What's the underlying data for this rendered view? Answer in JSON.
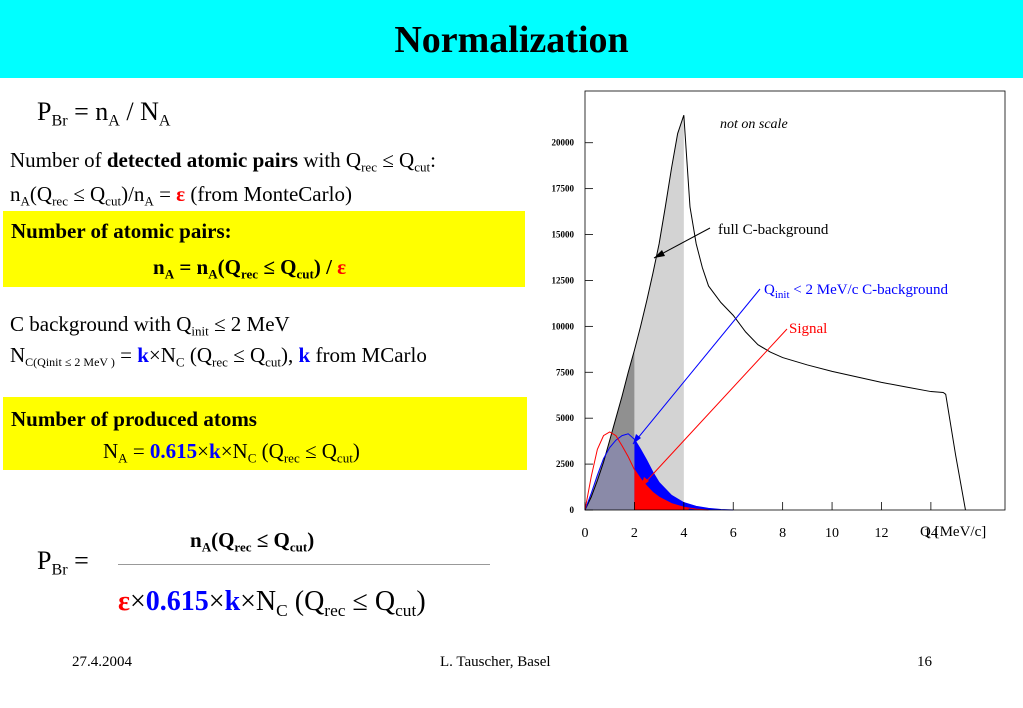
{
  "slide": {
    "title": "Normalization"
  },
  "formulas": {
    "pbr_def": {
      "p": "P",
      "p_sub": "Br",
      "eq": " = n",
      "a_sub": "A",
      "div": " / N",
      "a_sub2": "A"
    },
    "detected": {
      "pre": "Number of ",
      "bold": "detected atomic pairs",
      "post": " with Q",
      "rec": "rec",
      "le": " ≤ Q",
      "cut": "cut",
      "colon": ":"
    },
    "eff": {
      "n": "n",
      "a": "A",
      "q": "(Q",
      "rec": "rec",
      "le": " ≤ Q",
      "cut": "cut",
      "mid": ")/n",
      "a2": "A",
      "eq": " = ",
      "eps": "ε",
      "post": " (from MonteCarlo)"
    },
    "box1": {
      "title": "Number of atomic pairs:",
      "f1": "n",
      "a": "A",
      "f2": " = n",
      "a2": "A",
      "f3": "(Q",
      "rec": "rec",
      "le": " ≤ Q",
      "cut": "cut",
      "f4": ") / ",
      "eps": "ε"
    },
    "cbg": {
      "pre": "C background with Q",
      "init": "init",
      "post": " ≤ 2 MeV"
    },
    "nc": {
      "n": "N",
      "sub": "C(Qinit ≤ 2 MeV )",
      "eq": " = ",
      "k": "k",
      "times": "×N",
      "c": "C",
      "q": " (Q",
      "rec": "rec",
      "le": " ≤ Q",
      "cut": "cut",
      "close": "), ",
      "k2": "k",
      "post": " from MCarlo"
    },
    "box2": {
      "title": "Number of produced atoms",
      "n": "N",
      "a": "A",
      "eq": " = ",
      "num": "0.615",
      "times1": "×",
      "k": "k",
      "times2": "×N",
      "c": "C",
      "q": " (Q",
      "rec": "rec",
      "le": " ≤ Q",
      "cut": "cut",
      "close": ")"
    },
    "final": {
      "p": "P",
      "br": "Br",
      "eq": " =",
      "num_n": "n",
      "num_a": "A",
      "num_q": "(Q",
      "num_rec": "rec",
      "num_le": " ≤ Q",
      "num_cut": "cut",
      "num_close": ")",
      "eps": "ε",
      "times0": "×",
      "val": "0.615",
      "times1": "×",
      "k": "k",
      "times2": "×N",
      "c": "C",
      "q": " (Q",
      "rec": "rec",
      "le": " ≤ Q",
      "cut": "cut",
      "close": ")"
    }
  },
  "footer": {
    "date": "27.4.2004",
    "author": "L. Tauscher, Basel",
    "page": "16"
  },
  "chart_data": {
    "type": "area",
    "title": "",
    "xlabel": "Q [MeV/c]",
    "ylabel": "",
    "xlim": [
      0,
      17
    ],
    "ylim": [
      0,
      22500
    ],
    "xticks": [
      "0",
      "2",
      "4",
      "6",
      "8",
      "10",
      "12",
      "14"
    ],
    "yticks": [
      "0",
      "2500",
      "5000",
      "7500",
      "10000",
      "12500",
      "15000",
      "17500",
      "20000"
    ],
    "grid": false,
    "annotations": {
      "note": "not on scale",
      "full": "full C-background",
      "qinit_pre": "Q",
      "qinit_sub": "init",
      "qinit_post": " < 2 MeV/c C-background",
      "signal": "Signal"
    },
    "colors": {
      "full": "#000000",
      "shade_light": "#D3D3D3",
      "shade_dark": "#909090",
      "qinit": "#0000FF",
      "signal": "#FF0000"
    },
    "series": [
      {
        "name": "full C-background",
        "x": [
          0,
          0.25,
          0.5,
          0.75,
          1,
          1.25,
          1.5,
          1.75,
          2,
          2.25,
          2.5,
          2.75,
          3,
          3.25,
          3.5,
          3.75,
          4,
          4.25,
          4.5,
          4.75,
          5,
          5.5,
          6,
          6.5,
          7,
          7.5,
          8,
          9,
          10,
          11,
          12,
          13,
          14,
          14.5,
          14.6,
          15,
          15.4
        ],
        "y": [
          0,
          700,
          1600,
          2600,
          3800,
          5000,
          6200,
          7500,
          8700,
          10000,
          11400,
          12900,
          14500,
          16500,
          18600,
          20500,
          21500,
          16500,
          14500,
          13200,
          12200,
          11300,
          10600,
          9700,
          9000,
          8600,
          8300,
          7900,
          7550,
          7250,
          6950,
          6700,
          6450,
          6400,
          6300,
          3000,
          0
        ]
      },
      {
        "name": "Qinit < 2 MeV/c C-background",
        "x": [
          0,
          0.25,
          0.5,
          0.75,
          1,
          1.25,
          1.5,
          1.75,
          2,
          2.25,
          2.5,
          2.75,
          3,
          3.5,
          4,
          4.5,
          5,
          5.5,
          6
        ],
        "y": [
          0,
          900,
          1900,
          2800,
          3400,
          3800,
          4050,
          4150,
          3850,
          3300,
          2700,
          2050,
          1500,
          800,
          400,
          200,
          90,
          30,
          0
        ]
      },
      {
        "name": "Signal",
        "x": [
          0,
          0.25,
          0.5,
          0.75,
          1,
          1.25,
          1.5,
          1.75,
          2,
          2.25,
          2.5,
          2.75,
          3,
          3.5,
          4,
          4.5,
          5
        ],
        "y": [
          0,
          1800,
          3300,
          4050,
          4250,
          4050,
          3500,
          2900,
          2200,
          1700,
          1300,
          950,
          700,
          350,
          150,
          50,
          0
        ]
      }
    ]
  }
}
